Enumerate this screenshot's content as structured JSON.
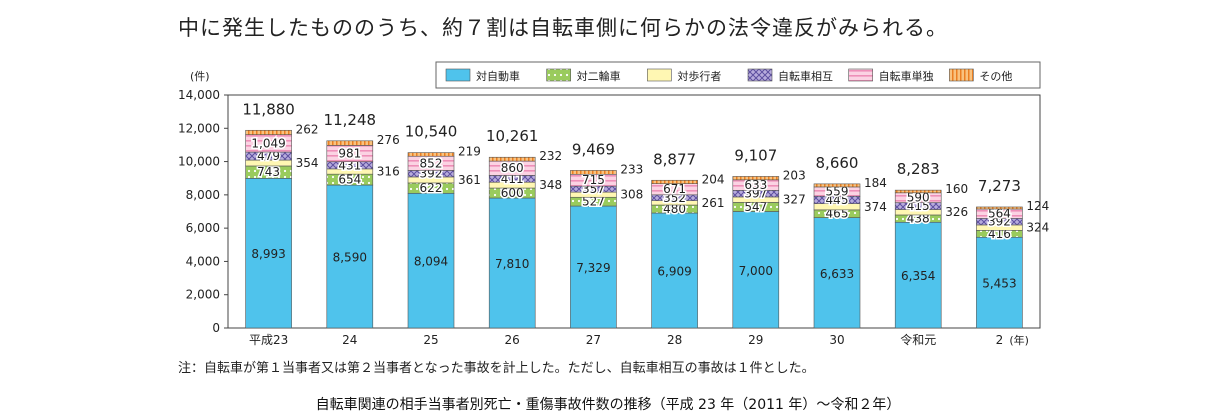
{
  "headline": "中に発生したもののうち、約７割は自転車側に何らかの法令違反がみられる。",
  "note": "注：自転車が第１当事者又は第２当事者となった事故を計上した。ただし、自転車相互の事故は１件とした。",
  "caption": "自転車関連の相手当事者別死亡・重傷事故件数の推移（平成 23 年（2011 年）～令和２年）",
  "chart_data": {
    "type": "bar",
    "stacked": true,
    "y_unit": "(件)",
    "x_unit": "(年)",
    "ylim": [
      0,
      14000
    ],
    "yticks": [
      "0",
      "2,000",
      "4,000",
      "6,000",
      "8,000",
      "10,000",
      "12,000",
      "14,000"
    ],
    "grid": false,
    "legend_position": "top",
    "categories": [
      "平成23",
      "24",
      "25",
      "26",
      "27",
      "28",
      "29",
      "30",
      "令和元",
      "2"
    ],
    "totals": [
      11880,
      11248,
      10540,
      10261,
      9469,
      8877,
      9107,
      8660,
      8283,
      7273
    ],
    "total_labels": [
      "11,880",
      "11,248",
      "10,540",
      "10,261",
      "9,469",
      "8,877",
      "9,107",
      "8,660",
      "8,283",
      "7,273"
    ],
    "series": [
      {
        "name": "対自動車",
        "color": "#4fc3ec",
        "values": [
          8993,
          8590,
          8094,
          7810,
          7329,
          6909,
          7000,
          6633,
          6354,
          5453
        ],
        "labels": [
          "8,993",
          "8,590",
          "8,094",
          "7,810",
          "7,329",
          "6,909",
          "7,000",
          "6,633",
          "6,354",
          "5,453"
        ]
      },
      {
        "name": "対二輪車",
        "color": "#9acb5d",
        "values": [
          743,
          654,
          622,
          600,
          527,
          480,
          547,
          465,
          438,
          416
        ],
        "labels": [
          "743",
          "654",
          "622",
          "600",
          "527",
          "480",
          "547",
          "465",
          "438",
          "416"
        ]
      },
      {
        "name": "対歩行者",
        "color": "#fff7b3",
        "values": [
          354,
          316,
          361,
          348,
          308,
          261,
          327,
          374,
          326,
          324
        ],
        "labels": [
          "354",
          "316",
          "361",
          "348",
          "308",
          "261",
          "327",
          "374",
          "326",
          "324"
        ]
      },
      {
        "name": "自転車相互",
        "color": "#9d8fcf",
        "values": [
          479,
          431,
          392,
          411,
          357,
          352,
          397,
          445,
          415,
          392
        ],
        "labels": [
          "479",
          "431",
          "392",
          "411",
          "357",
          "352",
          "397",
          "445",
          "415",
          "392"
        ]
      },
      {
        "name": "自転車単独",
        "color": "#f7b8d2",
        "values": [
          1049,
          981,
          852,
          860,
          715,
          671,
          633,
          559,
          590,
          564
        ],
        "labels": [
          "1,049",
          "981",
          "852",
          "860",
          "715",
          "671",
          "633",
          "559",
          "590",
          "564"
        ]
      },
      {
        "name": "その他",
        "color": "#f7a04a",
        "values": [
          262,
          276,
          219,
          232,
          233,
          204,
          203,
          184,
          160,
          124
        ],
        "labels": [
          "262",
          "276",
          "219",
          "232",
          "233",
          "204",
          "203",
          "184",
          "160",
          "124"
        ]
      }
    ]
  }
}
